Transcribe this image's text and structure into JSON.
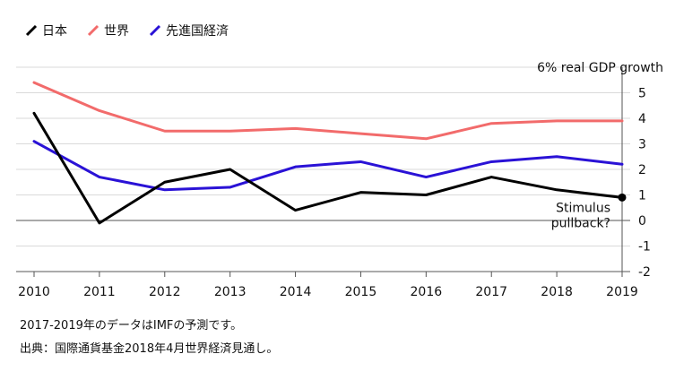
{
  "legend": [
    {
      "label": "日本",
      "color": "#000000"
    },
    {
      "label": "世界",
      "color": "#f26b6b"
    },
    {
      "label": "先進国経済",
      "color": "#2a12d6"
    }
  ],
  "notes": {
    "line1": "2017-2019年のデータはIMFの予測です。",
    "line2": "出典：国際通貨基金2018年4月世界経済見通し。"
  },
  "chart_data": {
    "type": "line",
    "x": [
      2010,
      2011,
      2012,
      2013,
      2014,
      2015,
      2016,
      2017,
      2018,
      2019
    ],
    "x_tick_labels": [
      "2010",
      "2011",
      "2012",
      "2013",
      "2014",
      "2015",
      "2016",
      "2017",
      "2018",
      "2019"
    ],
    "y_tick_labels": [
      "5",
      "4",
      "3",
      "2",
      "1",
      "0",
      "-1",
      "-2"
    ],
    "top_tick_label": "6% real GDP growth",
    "ylim": [
      -2,
      6
    ],
    "series": [
      {
        "name": "日本",
        "color": "#000000",
        "values": [
          4.2,
          -0.1,
          1.5,
          2.0,
          0.4,
          1.1,
          1.0,
          1.7,
          1.2,
          0.9
        ]
      },
      {
        "name": "世界",
        "color": "#f26b6b",
        "values": [
          5.4,
          4.3,
          3.5,
          3.5,
          3.6,
          3.4,
          3.2,
          3.8,
          3.9,
          3.9
        ]
      },
      {
        "name": "先進国経済",
        "color": "#2a12d6",
        "values": [
          3.1,
          1.7,
          1.2,
          1.3,
          2.1,
          2.3,
          1.7,
          2.3,
          2.5,
          2.2
        ]
      }
    ],
    "annotation": {
      "lines": [
        "Stimulus",
        "pullback?"
      ],
      "x": 2019,
      "y": 0.9
    },
    "grid": true,
    "legend_position": "top-left"
  }
}
